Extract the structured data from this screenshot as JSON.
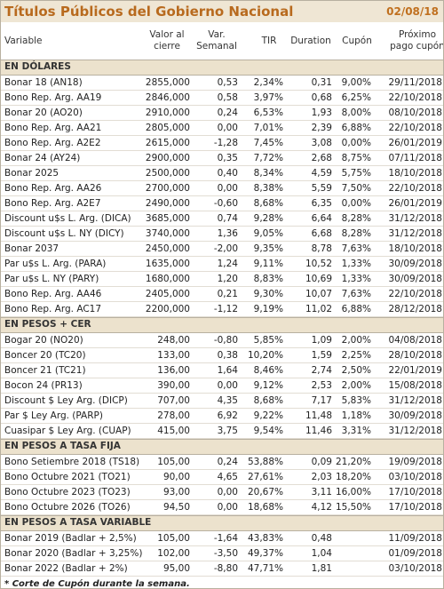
{
  "header": {
    "title": "Títulos Públicos del Gobierno Nacional",
    "date": "02/08/18"
  },
  "columns": [
    "Variable",
    "Valor al cierre",
    "Var. Semanal",
    "TIR",
    "Duration",
    "Cupón",
    "Próximo pago cupón"
  ],
  "sections": [
    {
      "title": "EN DÓLARES",
      "rows": [
        [
          "Bonar 18 (AN18)",
          "2855,000",
          "0,53",
          "2,34%",
          "0,31",
          "9,00%",
          "29/11/2018"
        ],
        [
          "Bono Rep. Arg. AA19",
          "2846,000",
          "0,58",
          "3,97%",
          "0,68",
          "6,25%",
          "22/10/2018"
        ],
        [
          "Bonar 20 (AO20)",
          "2910,000",
          "0,24",
          "6,53%",
          "1,93",
          "8,00%",
          "08/10/2018"
        ],
        [
          "Bono Rep. Arg. AA21",
          "2805,000",
          "0,00",
          "7,01%",
          "2,39",
          "6,88%",
          "22/10/2018"
        ],
        [
          "Bono Rep. Arg. A2E2",
          "2615,000",
          "-1,28",
          "7,45%",
          "3,08",
          "0,00%",
          "26/01/2019"
        ],
        [
          "Bonar 24 (AY24)",
          "2900,000",
          "0,35",
          "7,72%",
          "2,68",
          "8,75%",
          "07/11/2018"
        ],
        [
          "Bonar 2025",
          "2500,000",
          "0,40",
          "8,34%",
          "4,59",
          "5,75%",
          "18/10/2018"
        ],
        [
          "Bono Rep. Arg. AA26",
          "2700,000",
          "0,00",
          "8,38%",
          "5,59",
          "7,50%",
          "22/10/2018"
        ],
        [
          "Bono Rep. Arg. A2E7",
          "2490,000",
          "-0,60",
          "8,68%",
          "6,35",
          "0,00%",
          "26/01/2019"
        ],
        [
          "Discount u$s L. Arg. (DICA)",
          "3685,000",
          "0,74",
          "9,28%",
          "6,64",
          "8,28%",
          "31/12/2018"
        ],
        [
          "Discount u$s L. NY (DICY)",
          "3740,000",
          "1,36",
          "9,05%",
          "6,68",
          "8,28%",
          "31/12/2018"
        ],
        [
          "Bonar 2037",
          "2450,000",
          "-2,00",
          "9,35%",
          "8,78",
          "7,63%",
          "18/10/2018"
        ],
        [
          "Par u$s L. Arg. (PARA)",
          "1635,000",
          "1,24",
          "9,11%",
          "10,52",
          "1,33%",
          "30/09/2018"
        ],
        [
          "Par u$s L. NY (PARY)",
          "1680,000",
          "1,20",
          "8,83%",
          "10,69",
          "1,33%",
          "30/09/2018"
        ],
        [
          "Bono Rep. Arg. AA46",
          "2405,000",
          "0,21",
          "9,30%",
          "10,07",
          "7,63%",
          "22/10/2018"
        ],
        [
          "Bono Rep. Arg. AC17",
          "2200,000",
          "-1,12",
          "9,19%",
          "11,02",
          "6,88%",
          "28/12/2018"
        ]
      ]
    },
    {
      "title": "EN PESOS + CER",
      "rows": [
        [
          "Bogar 20 (NO20)",
          "248,00",
          "-0,80",
          "5,85%",
          "1,09",
          "2,00%",
          "04/08/2018"
        ],
        [
          "Boncer 20 (TC20)",
          "133,00",
          "0,38",
          "10,20%",
          "1,59",
          "2,25%",
          "28/10/2018"
        ],
        [
          "Boncer 21 (TC21)",
          "136,00",
          "1,64",
          "8,46%",
          "2,74",
          "2,50%",
          "22/01/2019"
        ],
        [
          "Bocon 24 (PR13)",
          "390,00",
          "0,00",
          "9,12%",
          "2,53",
          "2,00%",
          "15/08/2018"
        ],
        [
          "Discount $ Ley Arg. (DICP)",
          "707,00",
          "4,35",
          "8,68%",
          "7,17",
          "5,83%",
          "31/12/2018"
        ],
        [
          "Par $ Ley Arg. (PARP)",
          "278,00",
          "6,92",
          "9,22%",
          "11,48",
          "1,18%",
          "30/09/2018"
        ],
        [
          "Cuasipar $ Ley Arg. (CUAP)",
          "415,00",
          "3,75",
          "9,54%",
          "11,46",
          "3,31%",
          "31/12/2018"
        ]
      ]
    },
    {
      "title": "EN PESOS A TASA FIJA",
      "rows": [
        [
          "Bono Setiembre 2018 (TS18)",
          "105,00",
          "0,24",
          "53,88%",
          "0,09",
          "21,20%",
          "19/09/2018"
        ],
        [
          "Bono Octubre 2021 (TO21)",
          "90,00",
          "4,65",
          "27,61%",
          "2,03",
          "18,20%",
          "03/10/2018"
        ],
        [
          "Bono Octubre 2023 (TO23)",
          "93,00",
          "0,00",
          "20,67%",
          "3,11",
          "16,00%",
          "17/10/2018"
        ],
        [
          "Bono Octubre 2026 (TO26)",
          "94,50",
          "0,00",
          "18,68%",
          "4,12",
          "15,50%",
          "17/10/2018"
        ]
      ]
    },
    {
      "title": "EN PESOS A TASA VARIABLE",
      "rows": [
        [
          "Bonar 2019 (Badlar + 2,5%)",
          "105,00",
          "-1,64",
          "43,83%",
          "0,48",
          null,
          "11/09/2018"
        ],
        [
          "Bonar 2020 (Badlar + 3,25%)",
          "102,00",
          "-3,50",
          "49,37%",
          "1,04",
          null,
          "01/09/2018"
        ],
        [
          "Bonar 2022 (Badlar + 2%)",
          "95,00",
          "-8,80",
          "47,71%",
          "1,81",
          null,
          "03/10/2018"
        ]
      ]
    }
  ],
  "footnote": "* Corte de Cupón durante la semana."
}
